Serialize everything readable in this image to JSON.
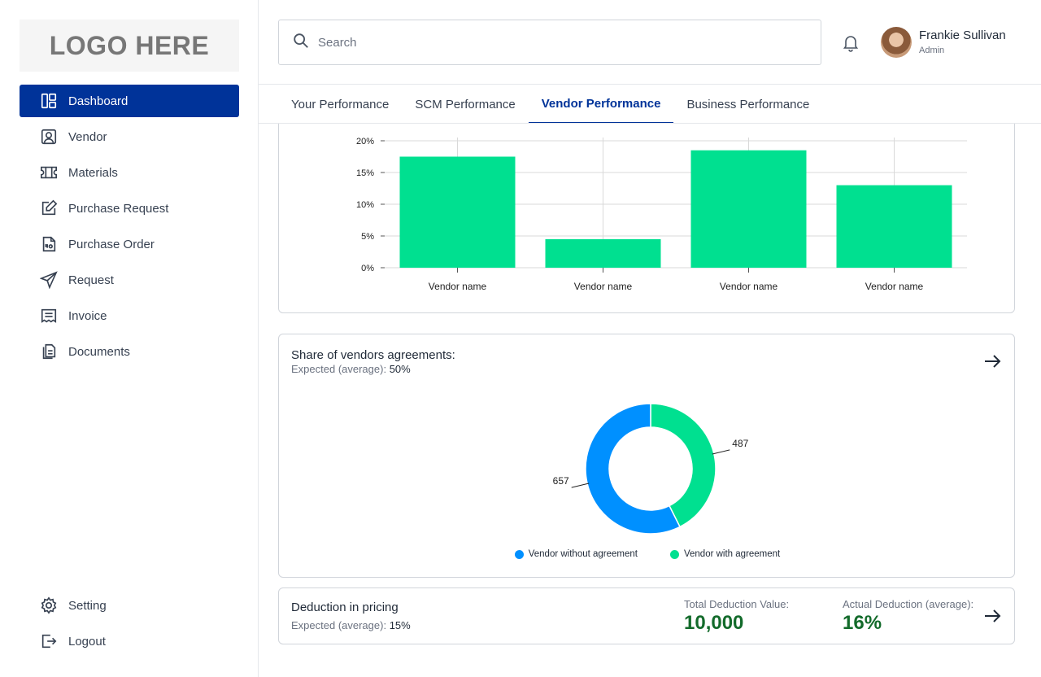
{
  "sidebar": {
    "logo": "LOGO HERE",
    "items": [
      {
        "label": "Dashboard",
        "icon": "dashboard-icon"
      },
      {
        "label": "Vendor",
        "icon": "vendor-icon"
      },
      {
        "label": "Materials",
        "icon": "materials-icon"
      },
      {
        "label": "Purchase Request",
        "icon": "edit-icon"
      },
      {
        "label": "Purchase Order",
        "icon": "po-icon"
      },
      {
        "label": "Request",
        "icon": "send-icon"
      },
      {
        "label": "Invoice",
        "icon": "invoice-icon"
      },
      {
        "label": "Documents",
        "icon": "documents-icon"
      }
    ],
    "bottom": [
      {
        "label": "Setting",
        "icon": "gear-icon"
      },
      {
        "label": "Logout",
        "icon": "logout-icon"
      }
    ]
  },
  "header": {
    "search_placeholder": "Search",
    "user_name": "Frankie Sullivan",
    "user_role": "Admin"
  },
  "tabs": [
    {
      "label": "Your Performance",
      "active": false
    },
    {
      "label": "SCM Performance",
      "active": false
    },
    {
      "label": "Vendor Performance",
      "active": true
    },
    {
      "label": "Business Performance",
      "active": false
    }
  ],
  "colors": {
    "brand": "#003399",
    "bar": "#00e090",
    "agreement": "#00e090",
    "no_agreement": "#0090ff",
    "metric": "#136b2b"
  },
  "chart_data": [
    {
      "type": "bar",
      "categories": [
        "Vendor name",
        "Vendor name",
        "Vendor name",
        "Vendor name"
      ],
      "values": [
        17.5,
        4.5,
        18.5,
        13
      ],
      "ylim": [
        0,
        20
      ],
      "yticks": [
        "0%",
        "5%",
        "10%",
        "15%",
        "20%"
      ],
      "ytick_values": [
        0,
        5,
        10,
        15,
        20
      ]
    },
    {
      "type": "pie",
      "title": "Share of vendors agreements:",
      "labels": [
        "Vendor with agreement",
        "Vendor without agreement"
      ],
      "values": [
        487,
        657
      ],
      "value_labels": [
        "487",
        "657"
      ]
    }
  ],
  "agreements": {
    "title": "Share of vendors agreements:",
    "sub_label": "Expected (average):",
    "sub_value": "50%",
    "legend": [
      "Vendor without agreement",
      "Vendor with agreement"
    ]
  },
  "deduction": {
    "title": "Deduction in pricing",
    "sub_label": "Expected (average):",
    "sub_value": "15%",
    "total_label": "Total Deduction Value:",
    "total_value": "10,000",
    "actual_label": "Actual Deduction (average):",
    "actual_value": "16%"
  }
}
